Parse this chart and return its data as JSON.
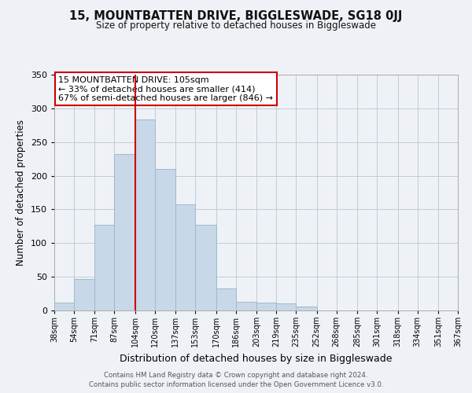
{
  "title": "15, MOUNTBATTEN DRIVE, BIGGLESWADE, SG18 0JJ",
  "subtitle": "Size of property relative to detached houses in Biggleswade",
  "xlabel": "Distribution of detached houses by size in Biggleswade",
  "ylabel": "Number of detached properties",
  "bar_color": "#c8d8e8",
  "bar_edge_color": "#a0b8cc",
  "background_color": "#eef2f6",
  "plot_bg_color": "#eef2f6",
  "grid_color": "#c0ccd8",
  "vline_x": 104,
  "vline_color": "#cc0000",
  "bin_edges": [
    38,
    54,
    71,
    87,
    104,
    120,
    137,
    153,
    170,
    186,
    203,
    219,
    235,
    252,
    268,
    285,
    301,
    318,
    334,
    351,
    367
  ],
  "bin_labels": [
    "38sqm",
    "54sqm",
    "71sqm",
    "87sqm",
    "104sqm",
    "120sqm",
    "137sqm",
    "153sqm",
    "170sqm",
    "186sqm",
    "203sqm",
    "219sqm",
    "235sqm",
    "252sqm",
    "268sqm",
    "285sqm",
    "301sqm",
    "318sqm",
    "334sqm",
    "351sqm",
    "367sqm"
  ],
  "bar_heights": [
    12,
    47,
    127,
    232,
    283,
    210,
    158,
    127,
    33,
    13,
    12,
    10,
    6,
    0,
    0,
    0,
    0,
    0,
    0,
    0
  ],
  "ylim": [
    0,
    350
  ],
  "yticks": [
    0,
    50,
    100,
    150,
    200,
    250,
    300,
    350
  ],
  "annotation_title": "15 MOUNTBATTEN DRIVE: 105sqm",
  "annotation_line1": "← 33% of detached houses are smaller (414)",
  "annotation_line2": "67% of semi-detached houses are larger (846) →",
  "annotation_box_color": "#ffffff",
  "annotation_border_color": "#cc0000",
  "footer_line1": "Contains HM Land Registry data © Crown copyright and database right 2024.",
  "footer_line2": "Contains public sector information licensed under the Open Government Licence v3.0."
}
